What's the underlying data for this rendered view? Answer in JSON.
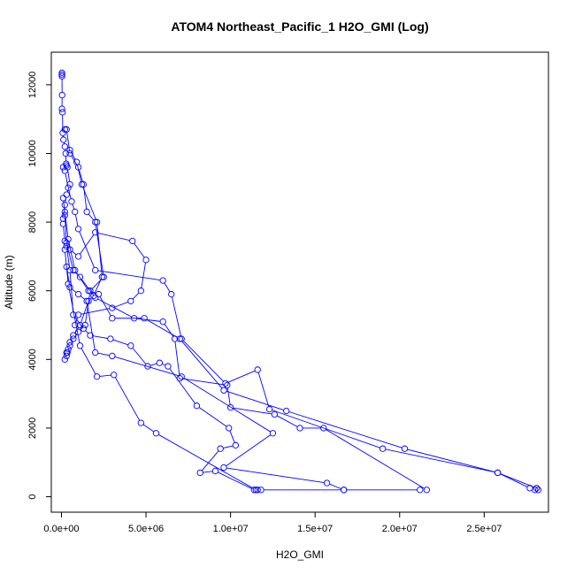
{
  "chart_data": {
    "type": "line",
    "title": "ATOM4 Northeast_Pacific_1 H2O_GMI (Log)",
    "xlabel": "H2O_GMI",
    "ylabel": "Altitude (m)",
    "xlim": [
      -600000,
      28800000
    ],
    "ylim": [
      -450,
      12950
    ],
    "x_ticks": [
      0,
      5000000,
      10000000,
      15000000,
      20000000,
      25000000
    ],
    "x_tick_labels": [
      "0.0e+00",
      "5.0e+06",
      "1.0e+07",
      "1.5e+07",
      "2.0e+07",
      "2.5e+07"
    ],
    "y_ticks": [
      0,
      2000,
      4000,
      6000,
      8000,
      10000,
      12000
    ],
    "y_tick_labels": [
      "0",
      "2000",
      "4000",
      "6000",
      "8000",
      "10000",
      "12000"
    ],
    "grid": false,
    "series_color": "#0000ff",
    "marker": "open-circle",
    "series": [
      {
        "x": [
          30000,
          30000,
          30000,
          40000,
          30000,
          60000,
          80000,
          120000,
          200000,
          250000,
          280000,
          300000,
          350000,
          500000,
          300000,
          200000,
          100000,
          100000,
          200000,
          500000,
          1000000,
          2000000,
          4200000,
          5000000,
          4700000,
          4100000,
          3000000,
          1000000,
          800000
        ],
        "y": [
          12350,
          12300,
          12250,
          11700,
          11300,
          11200,
          10600,
          10400,
          10200,
          10000,
          9700,
          9650,
          9600,
          9100,
          8800,
          8500,
          8100,
          7950,
          7450,
          7200,
          7000,
          7700,
          7450,
          6900,
          6000,
          5700,
          5500,
          5300,
          5000
        ]
      },
      {
        "x": [
          200000,
          300000,
          500000,
          1000000,
          1300000,
          1500000,
          2000000,
          2500000,
          1700000,
          1400000,
          1000000,
          700000,
          500000,
          300000,
          200000
        ],
        "y": [
          10700,
          10700,
          10000,
          9600,
          9100,
          8300,
          8000,
          6400,
          6000,
          5000,
          4800,
          4600,
          4400,
          4200,
          4000
        ]
      },
      {
        "x": [
          500000,
          900000,
          1200000,
          2100000,
          2400000,
          1900000,
          1600000,
          1100000,
          700000,
          500000,
          400000,
          350000,
          300000
        ],
        "y": [
          10100,
          9750,
          9100,
          8000,
          6400,
          5850,
          5700,
          5000,
          4700,
          4500,
          4300,
          4200,
          4100
        ]
      },
      {
        "x": [
          100000,
          200000,
          400000,
          600000,
          800000,
          1000000,
          2000000,
          6000000,
          6500000,
          7100000,
          9700000,
          11600000,
          12300000,
          19000000,
          25800000,
          28100000,
          28200000
        ],
        "y": [
          9600,
          9500,
          9000,
          8600,
          8300,
          7800,
          6600,
          6300,
          5900,
          4600,
          3300,
          3700,
          2550,
          1400,
          700,
          250,
          200
        ]
      },
      {
        "x": [
          100000,
          200000,
          400000,
          800000,
          1600000,
          2200000,
          3000000,
          4900000,
          7000000,
          9600000,
          13300000,
          20300000,
          25800000,
          27700000,
          28000000
        ],
        "y": [
          8700,
          8300,
          7500,
          6600,
          6000,
          5900,
          5200,
          5200,
          4600,
          3100,
          2500,
          1400,
          700,
          250,
          200
        ]
      },
      {
        "x": [
          200000,
          300000,
          700000,
          1100000,
          2000000,
          4300000,
          6000000,
          6700000,
          7000000,
          9800000,
          10000000,
          12600000,
          14100000,
          15500000,
          21600000
        ],
        "y": [
          8200,
          7400,
          6600,
          6400,
          5800,
          5200,
          5100,
          4600,
          3450,
          3250,
          2600,
          2400,
          2000,
          2000,
          200
        ]
      },
      {
        "x": [
          300000,
          500000,
          700000,
          1300000,
          1700000,
          2900000,
          4100000,
          5100000,
          5800000,
          6300000,
          8000000,
          9900000,
          10300000,
          9400000,
          8200000,
          9100000,
          11400000
        ],
        "y": [
          7300,
          6600,
          5300,
          4900,
          4700,
          4600,
          4400,
          3800,
          3900,
          3800,
          2650,
          2000,
          1500,
          1400,
          700,
          750,
          200
        ]
      },
      {
        "x": [
          200000,
          400000,
          1100000,
          2100000,
          3100000,
          4700000,
          5600000,
          11500000,
          11600000,
          11800000,
          16700000
        ],
        "y": [
          7200,
          6200,
          4400,
          3500,
          3550,
          2150,
          1850,
          200,
          200,
          200,
          200
        ]
      },
      {
        "x": [
          300000,
          500000,
          1000000,
          1500000,
          2000000,
          3000000,
          7100000,
          12500000,
          9600000,
          15700000,
          16700000,
          21200000
        ],
        "y": [
          6700,
          6100,
          5900,
          5700,
          4200,
          4100,
          3500,
          1850,
          850,
          400,
          200,
          200
        ]
      }
    ]
  }
}
